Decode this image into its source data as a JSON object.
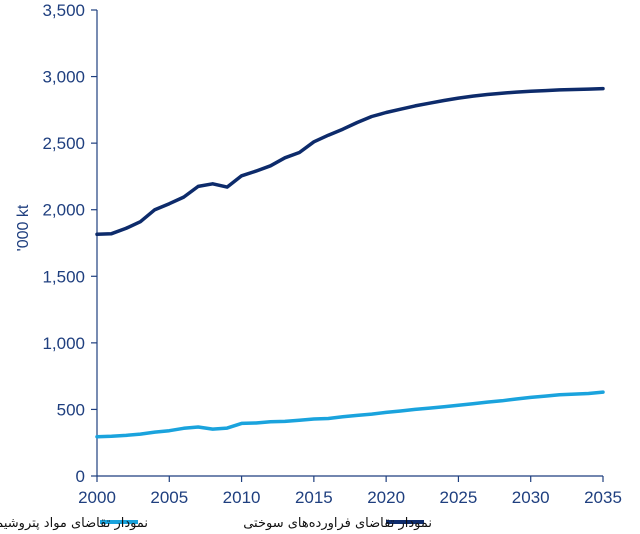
{
  "chart_data": {
    "type": "line",
    "ylabel": "'000 kt",
    "xlabel": "",
    "xlim": [
      2000,
      2035
    ],
    "ylim": [
      0,
      3500
    ],
    "x_ticks": [
      "2000",
      "2005",
      "2010",
      "2015",
      "2020",
      "2025",
      "2030",
      "2035"
    ],
    "y_ticks": [
      "0",
      "500",
      "1,000",
      "1,500",
      "2,000",
      "2,500",
      "3,000",
      "3,500"
    ],
    "grid": false,
    "legend_position": "bottom",
    "x": [
      2000,
      2001,
      2002,
      2003,
      2004,
      2005,
      2006,
      2007,
      2008,
      2009,
      2010,
      2011,
      2012,
      2013,
      2014,
      2015,
      2016,
      2017,
      2018,
      2019,
      2020,
      2021,
      2022,
      2023,
      2024,
      2025,
      2026,
      2027,
      2028,
      2029,
      2030,
      2031,
      2032,
      2033,
      2034,
      2035
    ],
    "series": [
      {
        "name": "نمودار تقاضای مواد پتروشیمیایی",
        "color": "#1aa3dd",
        "values": [
          295,
          298,
          305,
          315,
          330,
          340,
          358,
          368,
          352,
          360,
          395,
          398,
          408,
          410,
          418,
          428,
          432,
          445,
          455,
          465,
          478,
          488,
          500,
          510,
          520,
          532,
          542,
          555,
          565,
          578,
          590,
          600,
          610,
          615,
          620,
          630
        ]
      },
      {
        "name": "نمودار تقاضای فراورده‌های سوختی",
        "color": "#0d2b6b",
        "values": [
          1815,
          1820,
          1860,
          1910,
          2000,
          2045,
          2095,
          2175,
          2195,
          2170,
          2255,
          2290,
          2330,
          2390,
          2430,
          2510,
          2560,
          2605,
          2655,
          2700,
          2730,
          2755,
          2780,
          2800,
          2820,
          2838,
          2853,
          2865,
          2875,
          2883,
          2890,
          2895,
          2900,
          2903,
          2906,
          2910
        ]
      }
    ]
  },
  "colors": {
    "axis": "#1f3f7f"
  }
}
